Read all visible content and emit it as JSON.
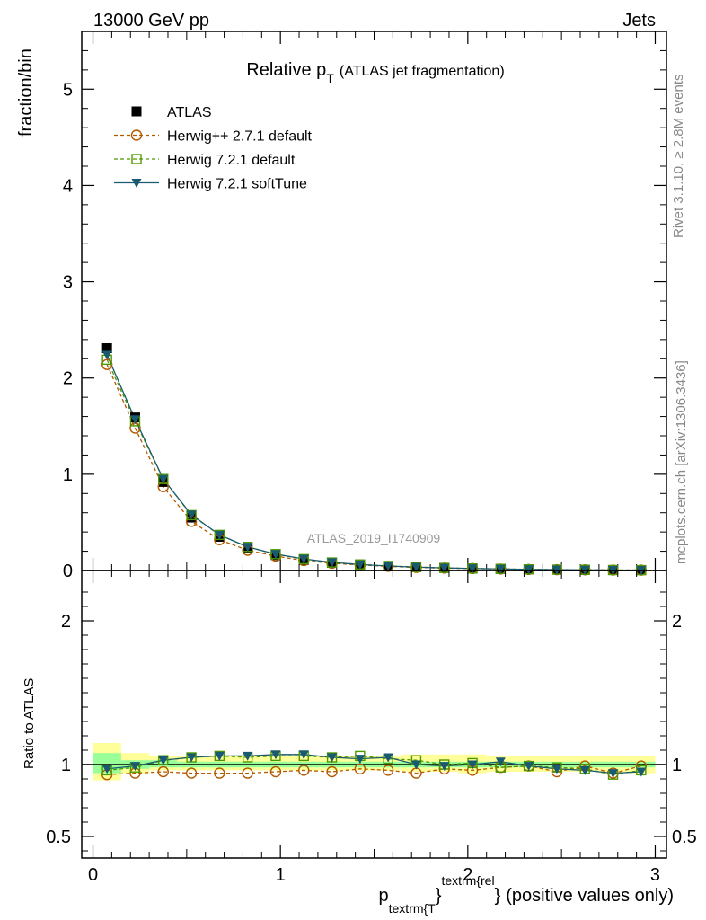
{
  "header": {
    "left": "13000 GeV pp",
    "right": "Jets"
  },
  "side_text": {
    "top": "Rivet 3.1.10, ≥ 2.8M events",
    "bottom": "mcplots.cern.ch [arXiv:1306.3436]"
  },
  "watermark": "ATLAS_2019_I1740909",
  "chart_data": [
    {
      "type": "scatter",
      "panel": "main",
      "title": "Relative p",
      "title_sub": "T",
      "title_suffix": "(ATLAS jet fragmentation)",
      "ylabel": "fraction/bin",
      "xlim": [
        -0.06,
        3.06
      ],
      "ylim": [
        0,
        5.6
      ],
      "yticks": [
        0,
        1,
        2,
        3,
        4,
        5
      ],
      "yticklabels": [
        "0",
        "1",
        "2",
        "3",
        "4",
        "5"
      ],
      "legend_position": "top-left",
      "x": [
        0.075,
        0.225,
        0.375,
        0.525,
        0.675,
        0.825,
        0.975,
        1.125,
        1.275,
        1.425,
        1.575,
        1.725,
        1.875,
        2.025,
        2.175,
        2.325,
        2.475,
        2.625,
        2.775,
        2.925
      ],
      "series": [
        {
          "name": "ATLAS",
          "color": "#000000",
          "marker": "square-filled",
          "values": [
            2.31,
            1.59,
            0.92,
            0.55,
            0.35,
            0.23,
            0.16,
            0.11,
            0.08,
            0.06,
            0.045,
            0.035,
            0.027,
            0.021,
            0.016,
            0.012,
            0.009,
            0.007,
            0.005,
            0.004
          ]
        },
        {
          "name": "Herwig++ 2.7.1 default",
          "color": "#b35900",
          "marker": "circle-open",
          "dash": "4,3",
          "values": [
            2.14,
            1.48,
            0.87,
            0.51,
            0.32,
            0.21,
            0.15,
            0.103,
            0.075,
            0.058,
            0.043,
            0.032,
            0.025,
            0.02,
            0.015,
            0.011,
            0.0085,
            0.007,
            0.0045,
            0.0039
          ]
        },
        {
          "name": "Herwig 7.2.1 default",
          "color": "#4c9900",
          "marker": "square-open",
          "dash": "4,3",
          "values": [
            2.19,
            1.55,
            0.95,
            0.575,
            0.37,
            0.245,
            0.17,
            0.118,
            0.083,
            0.063,
            0.047,
            0.036,
            0.027,
            0.021,
            0.016,
            0.012,
            0.0088,
            0.0068,
            0.0046,
            0.0039
          ]
        },
        {
          "name": "Herwig 7.2.1 softTune",
          "color": "#1a5a70",
          "marker": "triangle-down",
          "values": [
            2.24,
            1.57,
            0.95,
            0.58,
            0.37,
            0.245,
            0.17,
            0.12,
            0.085,
            0.062,
            0.047,
            0.035,
            0.027,
            0.021,
            0.016,
            0.012,
            0.0087,
            0.0067,
            0.0047,
            0.0038
          ]
        }
      ]
    },
    {
      "type": "scatter",
      "panel": "ratio",
      "ylabel": "Ratio to ATLAS",
      "xlabel_base": "p",
      "xlabel_sub": "textrm{T",
      "xlabel_sup": "textrm{rel",
      "xlabel_brace1": "}",
      "xlabel_brace2": "}",
      "xlabel_suffix": "(positive values only)",
      "xlim": [
        -0.06,
        3.06
      ],
      "ylim": [
        0.35,
        2.35
      ],
      "xticks": [
        0,
        1,
        2,
        3
      ],
      "xticklabels": [
        "0",
        "1",
        "2",
        "3"
      ],
      "yticks": [
        0.5,
        1,
        2
      ],
      "yticklabels": [
        "0.5",
        "1",
        "2"
      ],
      "band_yellow": [
        [
          0.89,
          1.15
        ],
        [
          0.94,
          1.08
        ],
        [
          0.96,
          1.06
        ],
        [
          0.96,
          1.06
        ],
        [
          0.96,
          1.06
        ],
        [
          0.96,
          1.06
        ],
        [
          0.96,
          1.06
        ],
        [
          0.96,
          1.06
        ],
        [
          0.96,
          1.06
        ],
        [
          0.96,
          1.06
        ],
        [
          0.96,
          1.06
        ],
        [
          0.95,
          1.07
        ],
        [
          0.95,
          1.07
        ],
        [
          0.94,
          1.07
        ],
        [
          0.95,
          1.06
        ],
        [
          0.95,
          1.06
        ],
        [
          0.95,
          1.06
        ],
        [
          0.95,
          1.06
        ],
        [
          0.94,
          1.06
        ],
        [
          0.94,
          1.06
        ]
      ],
      "band_green": [
        [
          0.94,
          1.08
        ],
        [
          0.97,
          1.03
        ],
        [
          0.98,
          1.03
        ],
        [
          0.98,
          1.02
        ],
        [
          0.98,
          1.02
        ],
        [
          0.98,
          1.02
        ],
        [
          0.98,
          1.02
        ],
        [
          0.98,
          1.02
        ],
        [
          0.98,
          1.02
        ],
        [
          0.98,
          1.02
        ],
        [
          0.98,
          1.02
        ],
        [
          0.98,
          1.02
        ],
        [
          0.98,
          1.02
        ],
        [
          0.98,
          1.02
        ],
        [
          0.98,
          1.02
        ],
        [
          0.98,
          1.02
        ],
        [
          0.98,
          1.02
        ],
        [
          0.98,
          1.02
        ],
        [
          0.98,
          1.02
        ],
        [
          0.98,
          1.02
        ]
      ],
      "x": [
        0.075,
        0.225,
        0.375,
        0.525,
        0.675,
        0.825,
        0.975,
        1.125,
        1.275,
        1.425,
        1.575,
        1.725,
        1.875,
        2.025,
        2.175,
        2.325,
        2.475,
        2.625,
        2.775,
        2.925
      ],
      "series": [
        {
          "name": "Herwig++ 2.7.1 default",
          "color": "#b35900",
          "marker": "circle-open",
          "dash": "4,3",
          "values": [
            0.93,
            0.94,
            0.95,
            0.94,
            0.94,
            0.94,
            0.95,
            0.96,
            0.95,
            0.97,
            0.96,
            0.94,
            0.97,
            0.96,
            0.98,
            0.99,
            0.95,
            0.99,
            0.94,
            0.99
          ]
        },
        {
          "name": "Herwig 7.2.1 default",
          "color": "#4c9900",
          "marker": "square-open",
          "dash": "4,3",
          "values": [
            0.96,
            0.98,
            1.03,
            1.05,
            1.06,
            1.05,
            1.06,
            1.06,
            1.05,
            1.06,
            1.04,
            1.03,
            1.0,
            1.01,
            0.98,
            0.99,
            0.98,
            0.97,
            0.93,
            0.96
          ]
        },
        {
          "name": "Herwig 7.2.1 softTune",
          "color": "#1a5a70",
          "marker": "triangle-down",
          "values": [
            0.97,
            0.99,
            1.03,
            1.05,
            1.06,
            1.06,
            1.07,
            1.07,
            1.05,
            1.04,
            1.05,
            1.0,
            0.99,
            1.0,
            1.02,
            0.99,
            0.97,
            0.96,
            0.94,
            0.95
          ]
        }
      ]
    }
  ]
}
